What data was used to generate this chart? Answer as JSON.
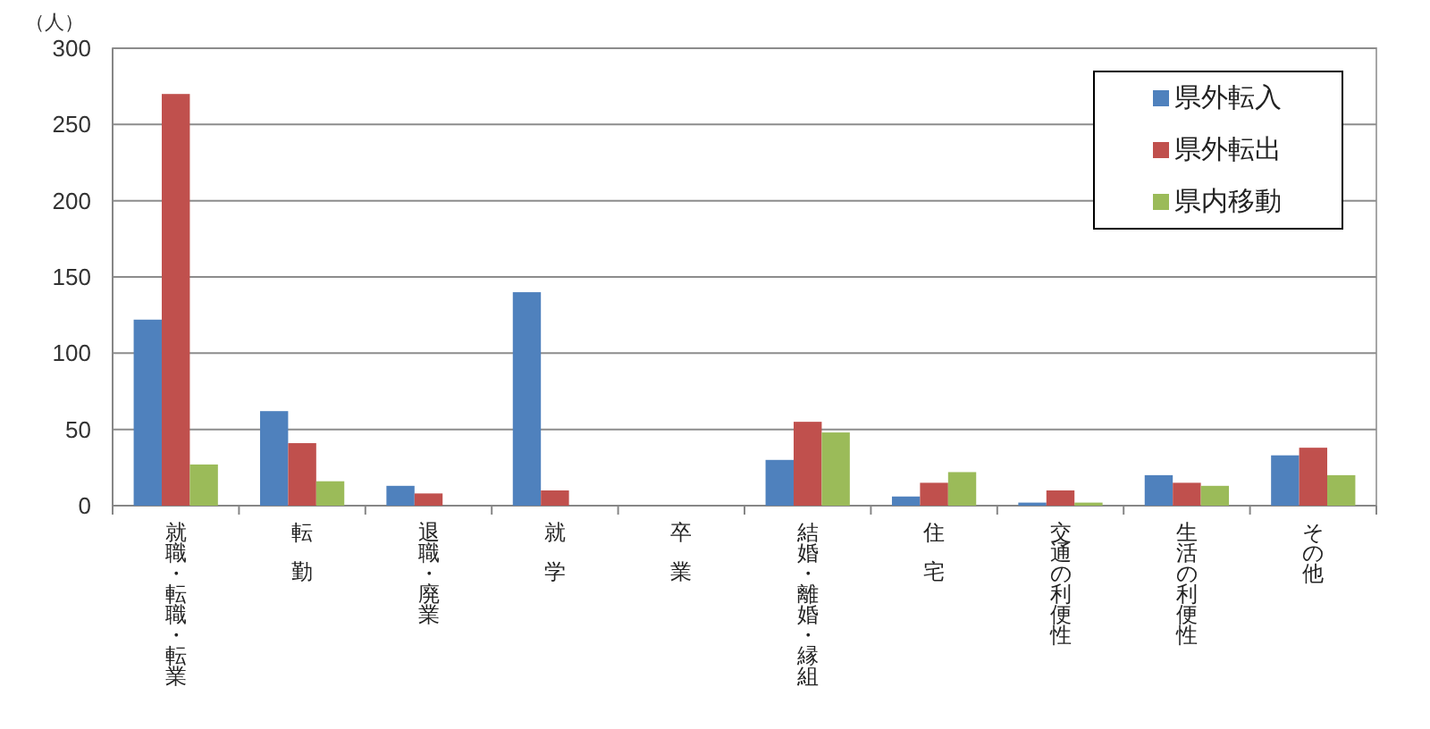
{
  "chart_data": {
    "type": "bar",
    "ylabel": "（人）",
    "categories": [
      "就職・転職・転業",
      "転勤",
      "退職・廃業",
      "就学",
      "卒業",
      "結婚・離婚・縁組",
      "住宅",
      "交通の利便性",
      "生活の利便性",
      "その他"
    ],
    "series": [
      {
        "name": "県外転入",
        "color": "#4f81bd",
        "values": [
          122,
          62,
          13,
          140,
          0,
          30,
          6,
          2,
          20,
          33
        ]
      },
      {
        "name": "県外転出",
        "color": "#c0504d",
        "values": [
          270,
          41,
          8,
          10,
          0,
          55,
          15,
          10,
          15,
          38
        ]
      },
      {
        "name": "県内移動",
        "color": "#9bbb59",
        "values": [
          27,
          16,
          0,
          0,
          0,
          48,
          22,
          2,
          13,
          20
        ]
      }
    ],
    "ylim": [
      0,
      300
    ],
    "yticks": [
      0,
      50,
      100,
      150,
      200,
      250,
      300
    ],
    "grid": "y",
    "legend": "top right"
  }
}
